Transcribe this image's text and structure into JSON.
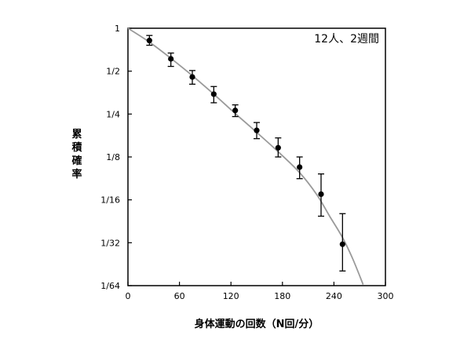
{
  "chart_data": {
    "type": "scatter",
    "annotation": "12人、2週間",
    "xlabel": "身体運動の回数（N回/分）",
    "ylabel": "累積確率",
    "xlim": [
      0,
      300
    ],
    "ylim": [
      0.015625,
      1
    ],
    "y_scale": "log2",
    "grid": false,
    "x_ticks": [
      0,
      60,
      120,
      180,
      240,
      300
    ],
    "x_tick_labels": [
      "0",
      "60",
      "120",
      "180",
      "240",
      "300"
    ],
    "y_ticks": [
      1,
      0.5,
      0.25,
      0.125,
      0.0625,
      0.03125,
      0.015625
    ],
    "y_tick_labels": [
      "1",
      "1/2",
      "1/4",
      "1/8",
      "1/16",
      "1/32",
      "1/64"
    ],
    "points": [
      {
        "x": 25,
        "y": 0.82,
        "err_low": 0.76,
        "err_high": 0.89
      },
      {
        "x": 50,
        "y": 0.61,
        "err_low": 0.54,
        "err_high": 0.67
      },
      {
        "x": 75,
        "y": 0.455,
        "err_low": 0.405,
        "err_high": 0.505
      },
      {
        "x": 100,
        "y": 0.345,
        "err_low": 0.3,
        "err_high": 0.39
      },
      {
        "x": 125,
        "y": 0.265,
        "err_low": 0.24,
        "err_high": 0.29
      },
      {
        "x": 150,
        "y": 0.192,
        "err_low": 0.168,
        "err_high": 0.218
      },
      {
        "x": 175,
        "y": 0.145,
        "err_low": 0.125,
        "err_high": 0.17
      },
      {
        "x": 200,
        "y": 0.106,
        "err_low": 0.088,
        "err_high": 0.125
      },
      {
        "x": 225,
        "y": 0.0685,
        "err_low": 0.048,
        "err_high": 0.095
      },
      {
        "x": 250,
        "y": 0.0305,
        "err_low": 0.0198,
        "err_high": 0.05
      }
    ],
    "fit_curve": [
      {
        "x": 0,
        "y": 1.0
      },
      {
        "x": 25,
        "y": 0.8
      },
      {
        "x": 50,
        "y": 0.615
      },
      {
        "x": 75,
        "y": 0.465
      },
      {
        "x": 100,
        "y": 0.345
      },
      {
        "x": 125,
        "y": 0.252
      },
      {
        "x": 150,
        "y": 0.186
      },
      {
        "x": 175,
        "y": 0.136
      },
      {
        "x": 200,
        "y": 0.097
      },
      {
        "x": 220,
        "y": 0.068
      },
      {
        "x": 235,
        "y": 0.048
      },
      {
        "x": 250,
        "y": 0.034
      },
      {
        "x": 262,
        "y": 0.024
      },
      {
        "x": 274,
        "y": 0.0159
      }
    ],
    "colors": {
      "points": "#000000",
      "fit": "#9a9a9a",
      "axes": "#000000"
    }
  }
}
